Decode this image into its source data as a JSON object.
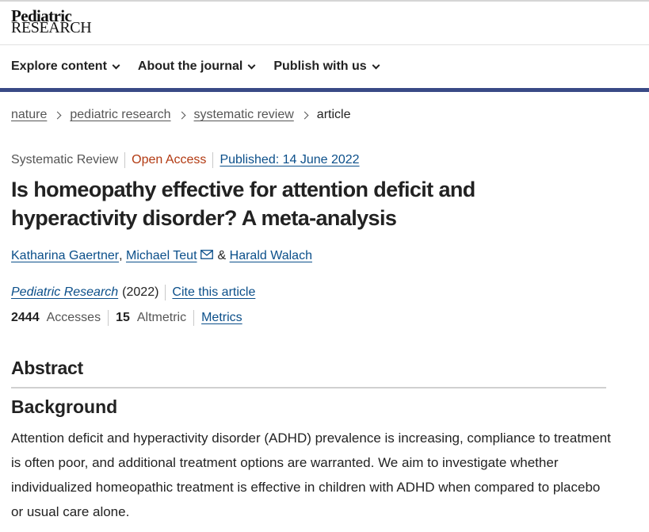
{
  "logo": {
    "line1": "Pediatric",
    "line2": "RESEARCH"
  },
  "nav": {
    "items": [
      {
        "label": "Explore content"
      },
      {
        "label": "About the journal"
      },
      {
        "label": "Publish with us"
      }
    ]
  },
  "breadcrumb": {
    "items": [
      "nature",
      "pediatric research",
      "systematic review"
    ],
    "current": "article"
  },
  "article": {
    "type": "Systematic Review",
    "access": "Open Access",
    "published": "Published: 14 June 2022",
    "title": "Is homeopathy effective for attention deficit and hyperactivity disorder? A meta-analysis",
    "authors": [
      "Katharina Gaertner",
      "Michael Teut",
      "Harald Walach"
    ],
    "author_sep": ",",
    "author_amp": "&",
    "journal": "Pediatric Research",
    "year": "(2022)",
    "cite_label": "Cite this article",
    "accesses_count": "2444",
    "accesses_label": "Accesses",
    "altmetric_count": "15",
    "altmetric_label": "Altmetric",
    "metrics_label": "Metrics"
  },
  "abstract": {
    "heading": "Abstract",
    "background_heading": "Background",
    "background_text": "Attention deficit and hyperactivity disorder (ADHD) prevalence is increasing, compliance to treatment is often poor, and additional treatment options are warranted. We aim to investigate whether individualized homeopathic treatment is effective in children with ADHD when compared to placebo or usual care alone."
  },
  "colors": {
    "brand_bar": "#394a86",
    "link": "#0b4f8a",
    "open_access": "#b23a12"
  },
  "icons": {
    "nav_chevron": "chevron-down-icon",
    "breadcrumb_sep": "chevron-right-icon",
    "author_contact": "envelope-icon"
  }
}
